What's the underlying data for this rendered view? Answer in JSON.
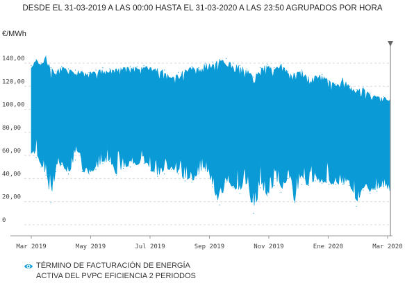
{
  "chart_data": {
    "type": "area",
    "subtitle": "DESDE EL 31-03-2019 A LAS 00:00 HASTA EL 31-03-2020 A LAS 23:50 AGRUPADOS POR HORA",
    "ylabel": "€/MWh",
    "ylim": [
      0,
      150
    ],
    "y_ticks": [
      "0",
      "20,00",
      "40,00",
      "60,00",
      "80,00",
      "100,00",
      "120,00",
      "140,00"
    ],
    "x_ticks": [
      "Mar 2019",
      "May 2019",
      "Jul 2019",
      "Sep 2019",
      "Nov 2019",
      "Ene 2020",
      "Mar 2020"
    ],
    "x_domain": [
      "2019-03-31",
      "2020-03-31"
    ],
    "grid": true,
    "color": "#0a9bd7",
    "series": [
      {
        "name": "TÉRMINO DE FACTURACIÓN DE ENERGÍA ACTIVA DEL PVPC EFICIENCIA 2 PERIODOS",
        "x": [
          "2019-03-31",
          "2019-04-05",
          "2019-04-10",
          "2019-04-15",
          "2019-04-20",
          "2019-04-25",
          "2019-05-01",
          "2019-05-08",
          "2019-05-15",
          "2019-05-22",
          "2019-05-29",
          "2019-06-05",
          "2019-06-12",
          "2019-06-19",
          "2019-06-26",
          "2019-07-03",
          "2019-07-10",
          "2019-07-17",
          "2019-07-24",
          "2019-07-31",
          "2019-08-07",
          "2019-08-14",
          "2019-08-21",
          "2019-08-28",
          "2019-09-04",
          "2019-09-11",
          "2019-09-18",
          "2019-09-25",
          "2019-10-02",
          "2019-10-09",
          "2019-10-16",
          "2019-10-23",
          "2019-10-30",
          "2019-11-06",
          "2019-11-13",
          "2019-11-20",
          "2019-11-27",
          "2019-12-04",
          "2019-12-11",
          "2019-12-18",
          "2019-12-25",
          "2020-01-01",
          "2020-01-08",
          "2020-01-15",
          "2020-01-22",
          "2020-01-29",
          "2020-02-05",
          "2020-02-12",
          "2020-02-19",
          "2020-02-26",
          "2020-03-04",
          "2020-03-11",
          "2020-03-18",
          "2020-03-25",
          "2020-03-31"
        ],
        "max": [
          138,
          143,
          140,
          146,
          136,
          133,
          137,
          135,
          134,
          133,
          132,
          134,
          136,
          135,
          135,
          136,
          137,
          137,
          138,
          136,
          135,
          134,
          127,
          132,
          134,
          137,
          136,
          140,
          141,
          143,
          144,
          140,
          138,
          135,
          128,
          136,
          139,
          136,
          139,
          133,
          131,
          134,
          128,
          129,
          130,
          125,
          122,
          127,
          120,
          117,
          119,
          114,
          111,
          111,
          108
        ],
        "min": [
          62,
          58,
          50,
          43,
          19,
          46,
          52,
          44,
          56,
          46,
          44,
          48,
          53,
          55,
          43,
          49,
          50,
          52,
          53,
          47,
          42,
          44,
          48,
          44,
          38,
          37,
          44,
          47,
          33,
          17,
          37,
          32,
          27,
          36,
          10,
          32,
          25,
          34,
          28,
          40,
          19,
          35,
          34,
          38,
          36,
          35,
          35,
          35,
          34,
          16,
          30,
          27,
          29,
          33,
          30
        ]
      }
    ]
  }
}
